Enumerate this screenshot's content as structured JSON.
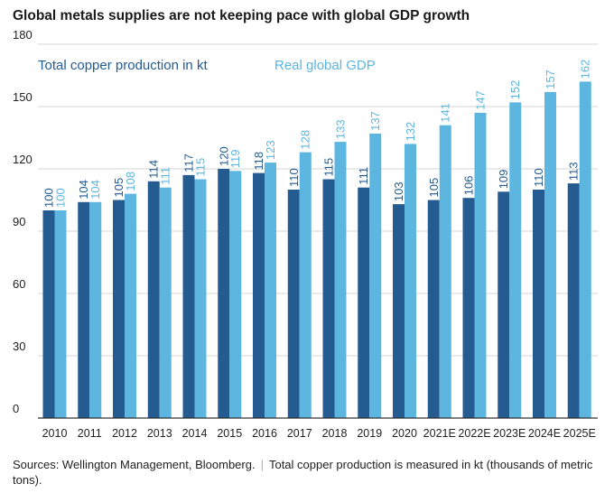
{
  "title": "Global metals supplies are not keeping pace with global GDP growth",
  "source": {
    "sources": "Sources: Wellington Management, Bloomberg.",
    "note": "Total copper production is measured in kt (thousands of metric tons)."
  },
  "colors": {
    "series1": "#245b91",
    "series2": "#5cb6e0",
    "grid": "#d6d6d6",
    "axis": "#333333"
  },
  "chart_data": {
    "type": "bar",
    "categories": [
      "2010",
      "2011",
      "2012",
      "2013",
      "2014",
      "2015",
      "2016",
      "2017",
      "2018",
      "2019",
      "2020",
      "2021E",
      "2022E",
      "2023E",
      "2024E",
      "2025E"
    ],
    "series": [
      {
        "name": "Total copper production in kt",
        "color": "#245b91",
        "values": [
          100,
          104,
          105,
          114,
          117,
          120,
          118,
          110,
          115,
          111,
          103,
          105,
          106,
          109,
          110,
          113
        ]
      },
      {
        "name": "Real global GDP",
        "color": "#5cb6e0",
        "values": [
          100,
          104,
          108,
          111,
          115,
          119,
          123,
          128,
          133,
          137,
          132,
          141,
          147,
          152,
          157,
          162
        ]
      }
    ],
    "yticks": [
      0,
      30,
      60,
      90,
      120,
      150,
      180
    ],
    "ylim": [
      0,
      180
    ],
    "grid": true,
    "legend": "top-left"
  }
}
